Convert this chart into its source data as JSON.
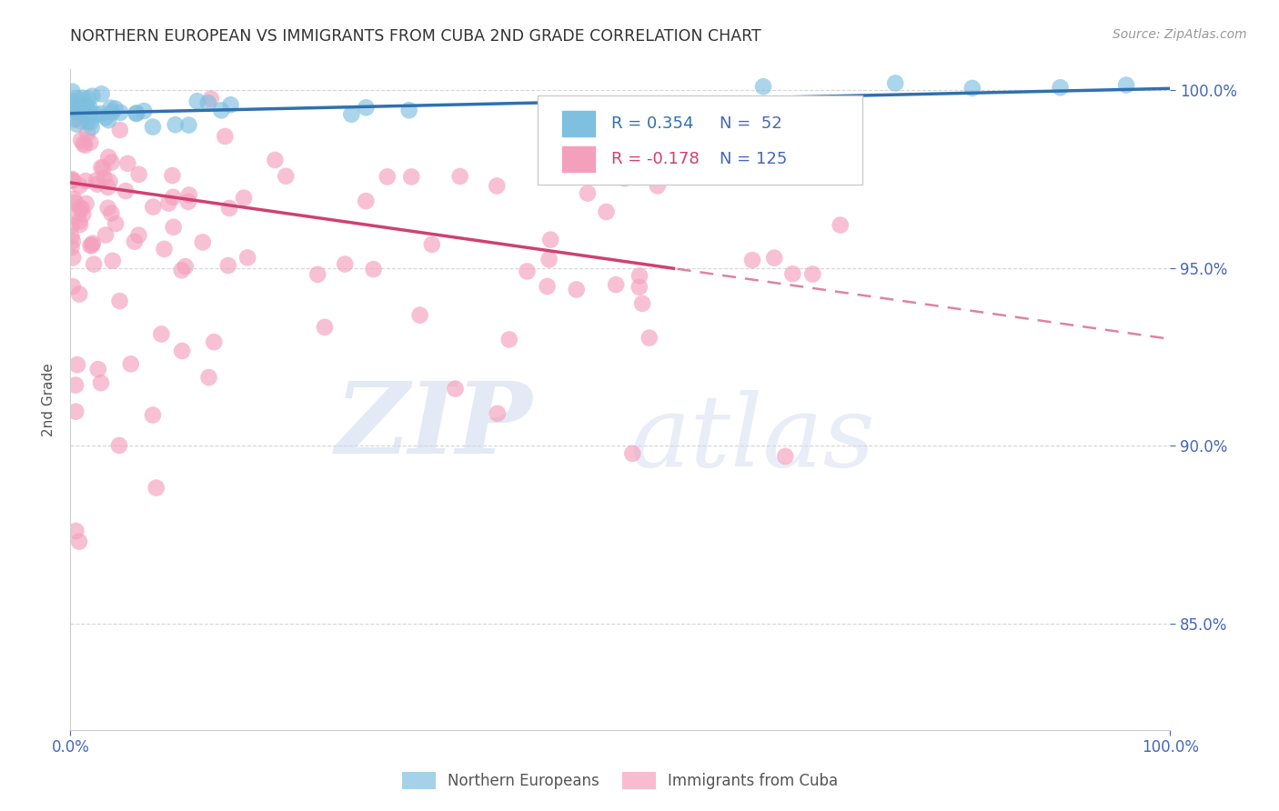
{
  "title": "NORTHERN EUROPEAN VS IMMIGRANTS FROM CUBA 2ND GRADE CORRELATION CHART",
  "source": "Source: ZipAtlas.com",
  "ylabel": "2nd Grade",
  "xlim": [
    0.0,
    1.0
  ],
  "ylim": [
    0.82,
    1.006
  ],
  "yticks": [
    0.85,
    0.9,
    0.95,
    1.0
  ],
  "ytick_labels": [
    "85.0%",
    "90.0%",
    "95.0%",
    "100.0%"
  ],
  "xtick_labels": [
    "0.0%",
    "100.0%"
  ],
  "xticks": [
    0.0,
    1.0
  ],
  "blue_R": 0.354,
  "blue_N": 52,
  "pink_R": -0.178,
  "pink_N": 125,
  "blue_color": "#7fbfdf",
  "pink_color": "#f4a0bc",
  "blue_line_color": "#3070b0",
  "pink_line_color": "#d04070",
  "legend_label_blue": "Northern Europeans",
  "legend_label_pink": "Immigrants from Cuba",
  "background_color": "#ffffff",
  "grid_color": "#cccccc",
  "title_color": "#333333",
  "axis_color": "#4466bb",
  "blue_trend_start": 0.9935,
  "blue_trend_end": 1.0005,
  "pink_trend_start": 0.974,
  "pink_trend_end": 0.93,
  "pink_solid_cutoff": 0.55
}
